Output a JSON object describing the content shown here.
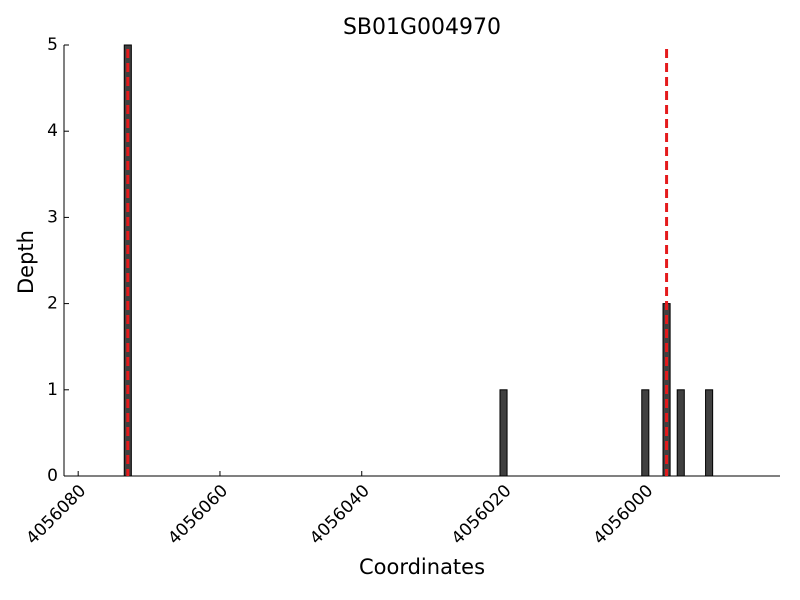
{
  "chart_data": {
    "type": "bar",
    "title": "SB01G004970",
    "x_label": "Coordinates",
    "y_label": "Depth",
    "x": [
      4056073,
      4056020,
      4056000,
      4055997,
      4055995,
      4055991
    ],
    "values": [
      5,
      1,
      1,
      2,
      1,
      1
    ],
    "color": "#404040",
    "xlim": [
      4056082,
      4055981
    ],
    "xticks": [
      4056080,
      4056060,
      4056040,
      4056020,
      4056000
    ],
    "ylim": [
      0,
      5
    ],
    "yticks": [
      0,
      1,
      2,
      3,
      4,
      5
    ],
    "vlines": [
      4056073,
      4055997
    ],
    "vline_color": "#e41a1c"
  }
}
